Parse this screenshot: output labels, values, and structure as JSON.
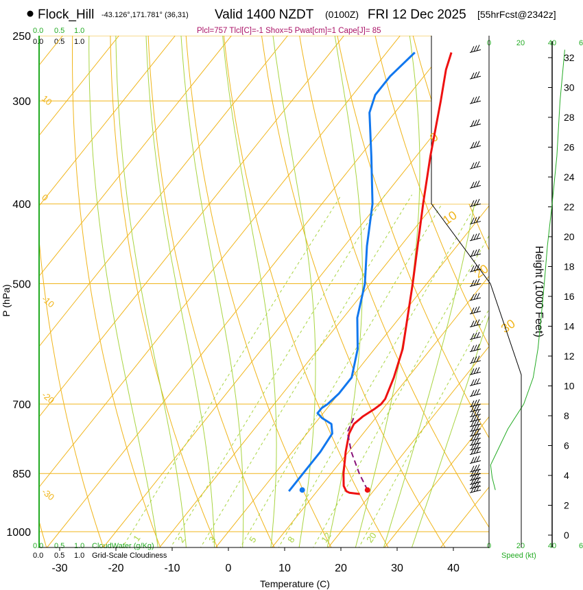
{
  "header": {
    "station": "Flock_Hill",
    "location": "-43.126°,171.781° (36,31)",
    "valid": "Valid 1400 NZDT",
    "utc": "(0100Z)",
    "date": "FRI 12 Dec 2025",
    "forecast": "[55hrFcst@2342z]",
    "indices": "Plcl=757 Tlcl[C]=-1 Shox=5 Pwat[cm]=1 Cape[J]= 85"
  },
  "colors": {
    "temperature": "#ee1111",
    "dewpoint": "#1177ee",
    "parcel": "#881177",
    "isotherm": "#f0b418",
    "dry_adiabat": "#f0b418",
    "moist_adiabat": "#a8d440",
    "mixing_ratio": "#a8d440",
    "green_text": "#22aa22"
  },
  "legend": {
    "cloudwater_label": "CloudWater (g/Kg)",
    "cloudiness_label": "Grid-Scale Cloudiness",
    "cloud_ticks_top": [
      "0.0",
      "0.5",
      "1.0"
    ],
    "cloud_ticks_bottom": [
      "0.0",
      "0.5",
      "1.0"
    ],
    "speed_label": "Speed (kt)",
    "speed_ticks": [
      "0",
      "20",
      "40"
    ],
    "extra_tick": "6"
  },
  "chart_data": {
    "type": "skewt",
    "title": "Flock_Hill Valid 1400 NZDT (0100Z) FRI 12 Dec 2025",
    "xlabel": "Temperature (C)",
    "ylabel": "P (hPa)",
    "y2label": "Height (1000 Feet)",
    "x_ticks": [
      -30,
      -20,
      -10,
      0,
      10,
      20,
      30,
      40
    ],
    "p_ticks": [
      250,
      300,
      400,
      500,
      700,
      850,
      1000
    ],
    "height_ticks": [
      0,
      2,
      4,
      6,
      8,
      10,
      12,
      14,
      16,
      18,
      20,
      22,
      24,
      26,
      28,
      30,
      32
    ],
    "isotherm_labels": [
      10,
      0,
      -10,
      -20,
      -30
    ],
    "dry_adiabat_labels": [
      0,
      10,
      20,
      30
    ],
    "mixing_ratio_labels": [
      1,
      2,
      3,
      5,
      8,
      12,
      20
    ],
    "temperature_profile": [
      {
        "p": 900,
        "t": 18.0
      },
      {
        "p": 897,
        "t": 16.0
      },
      {
        "p": 893,
        "t": 15.2
      },
      {
        "p": 880,
        "t": 14.0
      },
      {
        "p": 850,
        "t": 12.2
      },
      {
        "p": 800,
        "t": 9.5
      },
      {
        "p": 760,
        "t": 7.5
      },
      {
        "p": 740,
        "t": 7.0
      },
      {
        "p": 725,
        "t": 7.5
      },
      {
        "p": 710,
        "t": 8.5
      },
      {
        "p": 700,
        "t": 9.0
      },
      {
        "p": 690,
        "t": 9.0
      },
      {
        "p": 650,
        "t": 7.5
      },
      {
        "p": 600,
        "t": 5.0
      },
      {
        "p": 500,
        "t": -2.5
      },
      {
        "p": 400,
        "t": -12.0
      },
      {
        "p": 350,
        "t": -17.5
      },
      {
        "p": 300,
        "t": -23.5
      },
      {
        "p": 275,
        "t": -27.0
      },
      {
        "p": 262,
        "t": -28.5
      }
    ],
    "dewpoint_profile": [
      {
        "p": 893,
        "t": 5.0
      },
      {
        "p": 888,
        "t": 5.0
      },
      {
        "p": 850,
        "t": 5.0
      },
      {
        "p": 800,
        "t": 5.0
      },
      {
        "p": 760,
        "t": 4.5
      },
      {
        "p": 740,
        "t": 3.0
      },
      {
        "p": 728,
        "t": 0.5
      },
      {
        "p": 718,
        "t": -1.0
      },
      {
        "p": 708,
        "t": -1.0
      },
      {
        "p": 700,
        "t": -0.5
      },
      {
        "p": 680,
        "t": 0.0
      },
      {
        "p": 650,
        "t": 0.0
      },
      {
        "p": 600,
        "t": -3.0
      },
      {
        "p": 550,
        "t": -7.5
      },
      {
        "p": 500,
        "t": -11.0
      },
      {
        "p": 450,
        "t": -16.0
      },
      {
        "p": 400,
        "t": -21.0
      },
      {
        "p": 350,
        "t": -28.0
      },
      {
        "p": 310,
        "t": -34.5
      },
      {
        "p": 295,
        "t": -36.0
      },
      {
        "p": 280,
        "t": -36.0
      },
      {
        "p": 262,
        "t": -35.0
      }
    ],
    "parcel_profile": [
      {
        "p": 890,
        "t": 18.8
      },
      {
        "p": 850,
        "t": 15.0
      },
      {
        "p": 800,
        "t": 10.5
      },
      {
        "p": 757,
        "t": 7.0
      },
      {
        "p": 740,
        "t": 6.5
      },
      {
        "p": 725,
        "t": 6.0
      }
    ],
    "surface_points": [
      {
        "kind": "temperature",
        "p": 890,
        "t": 18.8
      },
      {
        "kind": "dewpoint",
        "p": 890,
        "t": 7.2
      }
    ],
    "wind_speed_profile": [
      {
        "p": 260,
        "kt": 48
      },
      {
        "p": 300,
        "kt": 45
      },
      {
        "p": 350,
        "kt": 43
      },
      {
        "p": 400,
        "kt": 40
      },
      {
        "p": 450,
        "kt": 37
      },
      {
        "p": 500,
        "kt": 35
      },
      {
        "p": 550,
        "kt": 33
      },
      {
        "p": 600,
        "kt": 31
      },
      {
        "p": 650,
        "kt": 28
      },
      {
        "p": 700,
        "kt": 22
      },
      {
        "p": 750,
        "kt": 12
      },
      {
        "p": 800,
        "kt": 5
      },
      {
        "p": 830,
        "kt": 1
      },
      {
        "p": 860,
        "kt": 2
      },
      {
        "p": 890,
        "kt": 4
      }
    ],
    "height_profile": [
      {
        "p": 250,
        "kft": 34
      },
      {
        "p": 300,
        "kft": 30
      },
      {
        "p": 400,
        "kft": 23.6
      },
      {
        "p": 500,
        "kft": 18.3
      },
      {
        "p": 600,
        "kft": 13.9
      },
      {
        "p": 700,
        "kft": 10
      },
      {
        "p": 850,
        "kft": 4.6
      },
      {
        "p": 1000,
        "kft": 0.3
      }
    ]
  }
}
